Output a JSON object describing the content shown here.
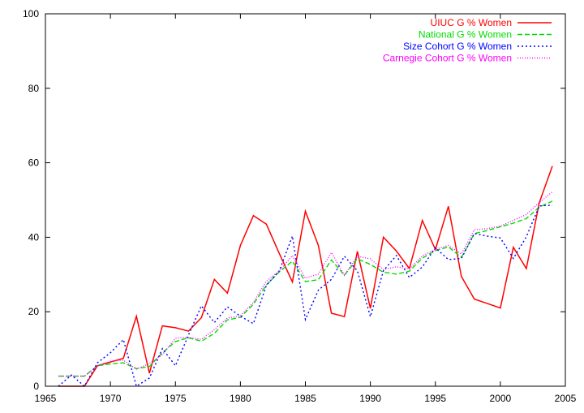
{
  "chart_data": {
    "type": "line",
    "xlim": [
      1965,
      2005
    ],
    "ylim": [
      0,
      100
    ],
    "x_ticks": [
      1965,
      1970,
      1975,
      1980,
      1985,
      1990,
      1995,
      2000,
      2005
    ],
    "y_ticks": [
      0,
      20,
      40,
      60,
      80,
      100
    ],
    "grid": false,
    "legend_position": "top-right",
    "series": [
      {
        "name": "UIUC G % Women",
        "color": "#ff0000",
        "dash": "solid",
        "x": [
          1966,
          1967,
          1968,
          1969,
          1970,
          1971,
          1972,
          1973,
          1974,
          1975,
          1976,
          1977,
          1978,
          1979,
          1980,
          1981,
          1982,
          1983,
          1984,
          1985,
          1986,
          1987,
          1988,
          1989,
          1990,
          1991,
          1992,
          1993,
          1994,
          1995,
          1996,
          1997,
          1998,
          1999,
          2000,
          2001,
          2002,
          2003,
          2004
        ],
        "y": [
          0,
          0,
          0,
          5.5,
          6.5,
          7.5,
          18.8,
          3.5,
          16.2,
          15.7,
          14.8,
          18.4,
          28.7,
          25.0,
          37.8,
          45.8,
          43.5,
          35.6,
          28.0,
          47.0,
          37.8,
          19.6,
          18.7,
          36.2,
          20.9,
          40.0,
          36.3,
          31.6,
          44.5,
          36.7,
          48.3,
          29.5,
          23.4,
          22.2,
          21.0,
          37.3,
          31.6,
          49.3,
          59.1
        ]
      },
      {
        "name": "National G % Women",
        "color": "#00dd00",
        "dash": "dashed",
        "x": [
          1966,
          1967,
          1968,
          1969,
          1970,
          1971,
          1972,
          1973,
          1974,
          1975,
          1976,
          1977,
          1978,
          1979,
          1980,
          1981,
          1982,
          1983,
          1984,
          1985,
          1986,
          1987,
          1988,
          1989,
          1990,
          1991,
          1992,
          1993,
          1994,
          1995,
          1996,
          1997,
          1998,
          1999,
          2000,
          2001,
          2002,
          2003,
          2004
        ],
        "y": [
          2.7,
          2.7,
          2.7,
          5.5,
          6.0,
          6.3,
          4.7,
          5.3,
          9.0,
          12.0,
          13.0,
          12.1,
          14.2,
          17.8,
          18.5,
          22.0,
          27.2,
          30.7,
          33.6,
          28.1,
          28.6,
          33.9,
          29.8,
          34.2,
          32.7,
          30.6,
          30.1,
          30.9,
          34.4,
          36.4,
          37.4,
          34.6,
          41.0,
          41.8,
          42.8,
          43.8,
          45.0,
          48.1,
          49.7
        ]
      },
      {
        "name": "Size Cohort G % Women",
        "color": "#0000ff",
        "dash": "dotted",
        "x": [
          1966,
          1967,
          1968,
          1969,
          1970,
          1971,
          1972,
          1973,
          1974,
          1975,
          1976,
          1977,
          1978,
          1979,
          1980,
          1981,
          1982,
          1983,
          1984,
          1985,
          1986,
          1987,
          1988,
          1989,
          1990,
          1991,
          1992,
          1993,
          1994,
          1995,
          1996,
          1997,
          1998,
          1999,
          2000,
          2001,
          2002,
          2003,
          2004
        ],
        "y": [
          0,
          3.0,
          0,
          6.3,
          9.0,
          12.5,
          0,
          2.2,
          10.1,
          5.5,
          13.7,
          21.6,
          17.1,
          21.3,
          18.8,
          16.8,
          27.1,
          31.0,
          40.3,
          17.9,
          25.8,
          28.7,
          34.9,
          31.0,
          18.7,
          31.0,
          35.1,
          29.2,
          32.0,
          37.2,
          34.0,
          34.3,
          41.0,
          40.3,
          39.8,
          34.3,
          40.1,
          48.4,
          48.6
        ]
      },
      {
        "name": "Carnegie Cohort G % Women",
        "color": "#ff00ff",
        "dash": "fine-dotted",
        "x": [
          1966,
          1967,
          1968,
          1969,
          1970,
          1971,
          1972,
          1973,
          1974,
          1975,
          1976,
          1977,
          1978,
          1979,
          1980,
          1981,
          1982,
          1983,
          1984,
          1985,
          1986,
          1987,
          1988,
          1989,
          1990,
          1991,
          1992,
          1993,
          1994,
          1995,
          1996,
          1997,
          1998,
          1999,
          2000,
          2001,
          2002,
          2003,
          2004
        ],
        "y": [
          2.7,
          2.7,
          2.7,
          5.5,
          6.7,
          7.0,
          4.6,
          6.1,
          8.5,
          12.9,
          13.1,
          12.6,
          15.2,
          18.3,
          18.9,
          22.5,
          28.2,
          31.0,
          35.1,
          29.0,
          30.1,
          35.9,
          29.8,
          34.9,
          34.2,
          31.3,
          32.1,
          31.5,
          35.0,
          36.8,
          37.8,
          35.5,
          42.0,
          42.3,
          43.0,
          44.5,
          46.1,
          49.3,
          52.2
        ]
      }
    ]
  }
}
